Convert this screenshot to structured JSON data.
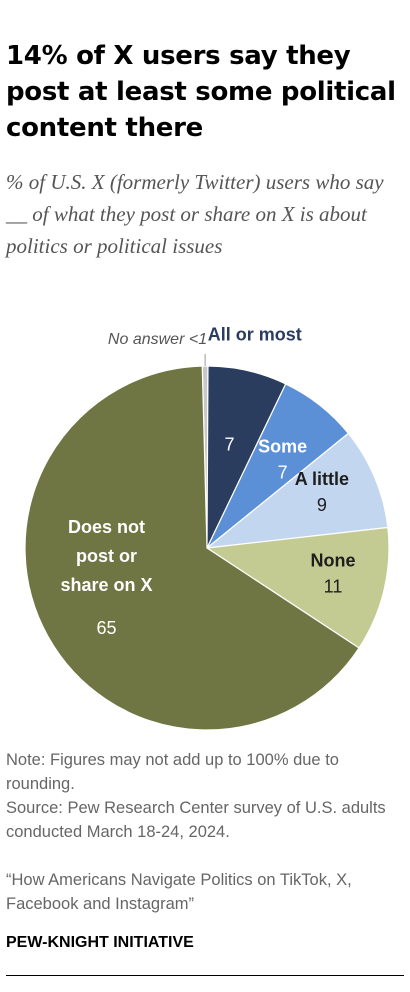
{
  "title": "14% of X users say they post at least some political content there",
  "subtitle": "% of U.S. X (formerly Twitter) users who say __ of what they post or share on X is about politics or political issues",
  "chart_data": {
    "type": "pie",
    "slices": [
      {
        "category": "No answer",
        "value": 0.5,
        "label_lines": [
          "No answer <1"
        ],
        "value_label": "",
        "color": "#c8c8c8"
      },
      {
        "category": "All or most",
        "value": 7,
        "label_lines": [
          "All or most"
        ],
        "value_label": "7",
        "color": "#2b3d5e"
      },
      {
        "category": "Some",
        "value": 7,
        "label_lines": [
          "Some"
        ],
        "value_label": "7",
        "color": "#5b8fd6"
      },
      {
        "category": "A little",
        "value": 9,
        "label_lines": [
          "A little"
        ],
        "value_label": "9",
        "color": "#c3d6ef"
      },
      {
        "category": "None",
        "value": 11,
        "label_lines": [
          "None"
        ],
        "value_label": "11",
        "color": "#c4cb92"
      },
      {
        "category": "Does not post or share on X",
        "value": 65,
        "label_lines": [
          "Does not",
          "post or",
          "share on X"
        ],
        "value_label": "65",
        "color": "#6f7643"
      }
    ]
  },
  "notes": {
    "note": "Note: Figures may not add up to 100% due to rounding.",
    "source": "Source: Pew Research Center survey of U.S. adults conducted March 18-24, 2024.",
    "report": "“How Americans Navigate Politics on TikTok, X, Facebook and Instagram”"
  },
  "brand": "PEW-KNIGHT INITIATIVE"
}
